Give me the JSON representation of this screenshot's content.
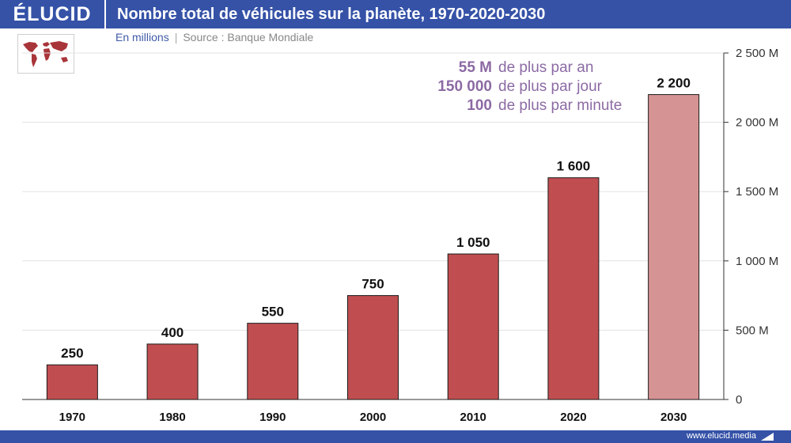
{
  "header": {
    "brand": "ÉLUCID",
    "title": "Nombre total de véhicules sur la planète, 1970-2020-2030"
  },
  "subtitle": {
    "unit": "En millions",
    "separator": "|",
    "source": "Source : Banque Mondiale"
  },
  "callout": [
    {
      "num": "55 M",
      "text": "de plus par an"
    },
    {
      "num": "150 000",
      "text": "de plus par jour"
    },
    {
      "num": "100",
      "text": "de plus par minute"
    }
  ],
  "footer": {
    "site": "www.elucid.media"
  },
  "colors": {
    "brand": "#3552a7",
    "bar": "#c04e50",
    "bar_projection": "#d69394",
    "callout": "#8c6aa4"
  },
  "chart_data": {
    "type": "bar",
    "title": "Nombre total de véhicules sur la planète, 1970-2020-2030",
    "xlabel": "",
    "ylabel": "En millions",
    "categories": [
      "1970",
      "1980",
      "1990",
      "2000",
      "2010",
      "2020",
      "2030"
    ],
    "values": [
      250,
      400,
      550,
      750,
      1050,
      1600,
      2200
    ],
    "value_labels": [
      "250",
      "400",
      "550",
      "750",
      "1 050",
      "1 600",
      "2 200"
    ],
    "projected": [
      false,
      false,
      false,
      false,
      false,
      false,
      true
    ],
    "ylim": [
      0,
      2500
    ],
    "yticks": [
      0,
      500,
      1000,
      1500,
      2000,
      2500
    ],
    "ytick_labels": [
      "0",
      "500 M",
      "1 000 M",
      "1 500 M",
      "2 000 M",
      "2 500 M"
    ],
    "y_axis_position": "right",
    "grid": true
  }
}
